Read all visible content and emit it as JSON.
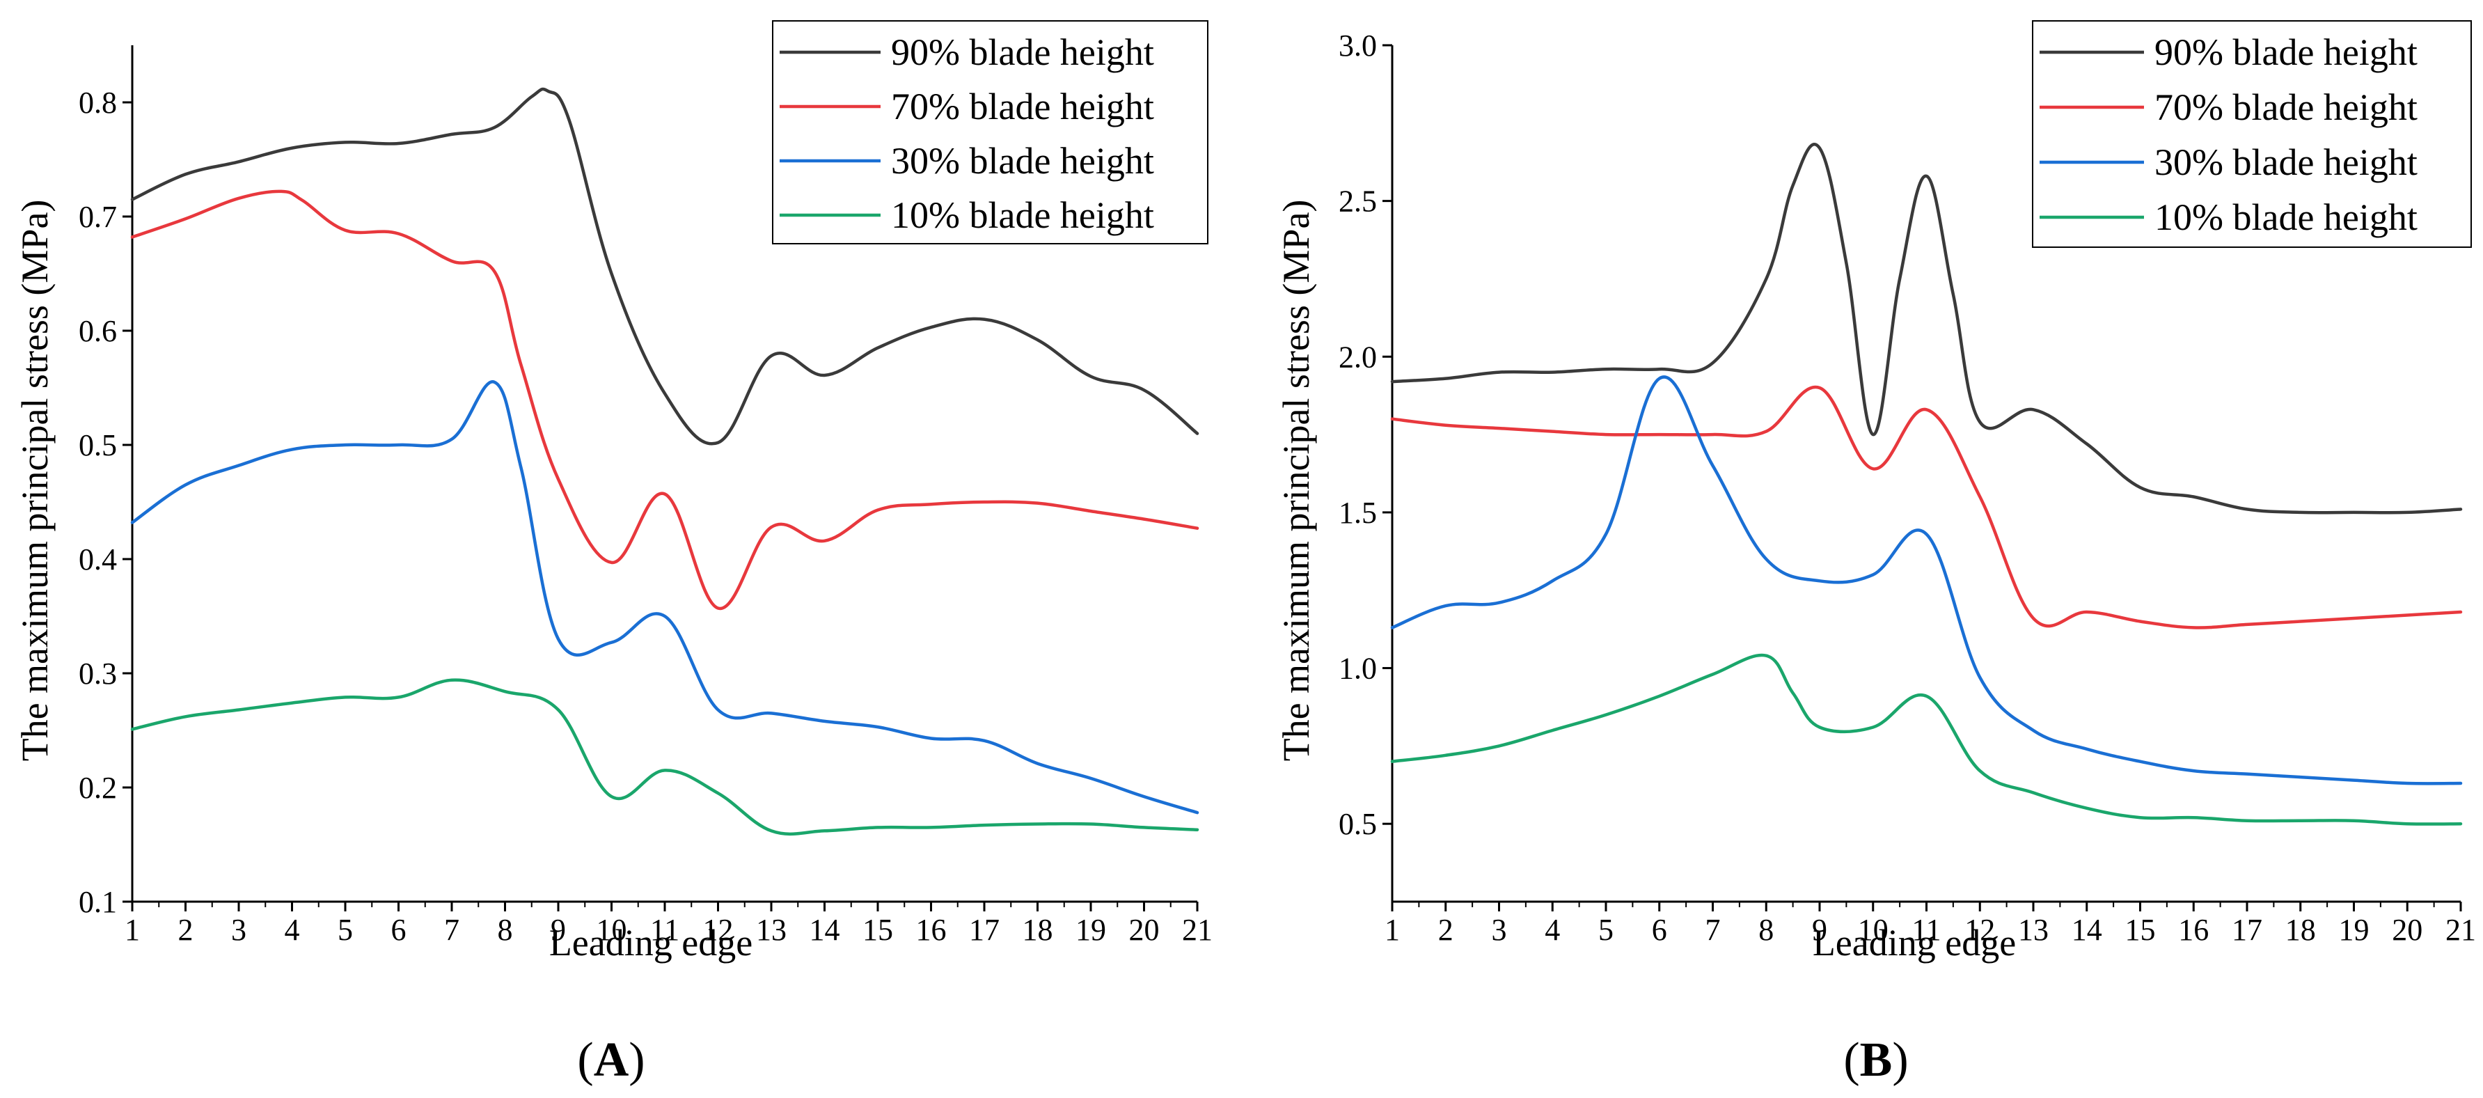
{
  "chart_data": [
    {
      "type": "line",
      "panel_label": "A",
      "xlabel": "Leading edge",
      "ylabel": "The maximum principal stress (MPa)",
      "xlim": [
        1,
        21
      ],
      "ylim": [
        0.1,
        0.85
      ],
      "x_ticks": [
        1,
        2,
        3,
        4,
        5,
        6,
        7,
        8,
        9,
        10,
        11,
        12,
        13,
        14,
        15,
        16,
        17,
        18,
        19,
        20,
        21
      ],
      "y_ticks": [
        "0.1",
        "0.2",
        "0.3",
        "0.4",
        "0.5",
        "0.6",
        "0.7",
        "0.8"
      ],
      "legend_position": "top-right",
      "series": [
        {
          "name": "90% blade height",
          "color": "#3a3a3a",
          "points": [
            [
              1,
              0.715
            ],
            [
              2,
              0.737
            ],
            [
              3,
              0.748
            ],
            [
              4,
              0.76
            ],
            [
              5,
              0.765
            ],
            [
              6,
              0.764
            ],
            [
              7,
              0.772
            ],
            [
              7.8,
              0.778
            ],
            [
              8.5,
              0.805
            ],
            [
              8.8,
              0.81
            ],
            [
              9.2,
              0.785
            ],
            [
              10,
              0.65
            ],
            [
              11,
              0.545
            ],
            [
              12,
              0.502
            ],
            [
              13,
              0.578
            ],
            [
              14,
              0.561
            ],
            [
              15,
              0.585
            ],
            [
              16,
              0.603
            ],
            [
              17,
              0.61
            ],
            [
              18,
              0.592
            ],
            [
              19,
              0.56
            ],
            [
              20,
              0.548
            ],
            [
              21,
              0.51
            ]
          ]
        },
        {
          "name": "70% blade height",
          "color": "#e8383d",
          "points": [
            [
              1,
              0.682
            ],
            [
              2,
              0.698
            ],
            [
              3,
              0.716
            ],
            [
              3.8,
              0.722
            ],
            [
              4.2,
              0.714
            ],
            [
              5,
              0.688
            ],
            [
              6,
              0.685
            ],
            [
              7,
              0.661
            ],
            [
              7.8,
              0.652
            ],
            [
              8.3,
              0.57
            ],
            [
              9,
              0.47
            ],
            [
              10,
              0.397
            ],
            [
              11,
              0.457
            ],
            [
              12,
              0.357
            ],
            [
              13,
              0.428
            ],
            [
              14,
              0.416
            ],
            [
              15,
              0.443
            ],
            [
              16,
              0.448
            ],
            [
              17,
              0.45
            ],
            [
              18,
              0.449
            ],
            [
              19,
              0.442
            ],
            [
              20,
              0.435
            ],
            [
              21,
              0.427
            ]
          ]
        },
        {
          "name": "30% blade height",
          "color": "#1a6fd4",
          "points": [
            [
              1,
              0.432
            ],
            [
              2,
              0.465
            ],
            [
              3,
              0.482
            ],
            [
              4,
              0.496
            ],
            [
              5,
              0.5
            ],
            [
              6,
              0.5
            ],
            [
              7,
              0.505
            ],
            [
              7.8,
              0.555
            ],
            [
              8.3,
              0.48
            ],
            [
              9,
              0.33
            ],
            [
              10,
              0.327
            ],
            [
              11,
              0.35
            ],
            [
              12,
              0.268
            ],
            [
              13,
              0.265
            ],
            [
              14,
              0.258
            ],
            [
              15,
              0.253
            ],
            [
              16,
              0.243
            ],
            [
              17,
              0.241
            ],
            [
              18,
              0.221
            ],
            [
              19,
              0.208
            ],
            [
              20,
              0.192
            ],
            [
              21,
              0.178
            ]
          ]
        },
        {
          "name": "10% blade height",
          "color": "#1aa66b",
          "points": [
            [
              1,
              0.251
            ],
            [
              2,
              0.262
            ],
            [
              3,
              0.268
            ],
            [
              4,
              0.274
            ],
            [
              5,
              0.279
            ],
            [
              6,
              0.279
            ],
            [
              7,
              0.294
            ],
            [
              8,
              0.284
            ],
            [
              9,
              0.268
            ],
            [
              10,
              0.192
            ],
            [
              11,
              0.215
            ],
            [
              12,
              0.195
            ],
            [
              13,
              0.162
            ],
            [
              14,
              0.162
            ],
            [
              15,
              0.165
            ],
            [
              16,
              0.165
            ],
            [
              17,
              0.167
            ],
            [
              18,
              0.168
            ],
            [
              19,
              0.168
            ],
            [
              20,
              0.165
            ],
            [
              21,
              0.163
            ]
          ]
        }
      ]
    },
    {
      "type": "line",
      "panel_label": "B",
      "xlabel": "Leading edge",
      "ylabel": "The maximum principal stress (MPa)",
      "xlim": [
        1,
        21
      ],
      "ylim": [
        0.25,
        3.0
      ],
      "x_ticks": [
        1,
        2,
        3,
        4,
        5,
        6,
        7,
        8,
        9,
        10,
        11,
        12,
        13,
        14,
        15,
        16,
        17,
        18,
        19,
        20,
        21
      ],
      "y_ticks": [
        "0.5",
        "1.0",
        "1.5",
        "2.0",
        "2.5",
        "3.0"
      ],
      "legend_position": "top-right",
      "series": [
        {
          "name": "90% blade height",
          "color": "#3a3a3a",
          "points": [
            [
              1,
              1.92
            ],
            [
              2,
              1.93
            ],
            [
              3,
              1.95
            ],
            [
              4,
              1.95
            ],
            [
              5,
              1.96
            ],
            [
              6,
              1.96
            ],
            [
              7,
              1.98
            ],
            [
              8,
              2.25
            ],
            [
              8.5,
              2.55
            ],
            [
              9,
              2.67
            ],
            [
              9.5,
              2.3
            ],
            [
              10,
              1.75
            ],
            [
              10.5,
              2.25
            ],
            [
              11,
              2.58
            ],
            [
              11.5,
              2.2
            ],
            [
              12,
              1.79
            ],
            [
              13,
              1.83
            ],
            [
              14,
              1.72
            ],
            [
              15,
              1.58
            ],
            [
              16,
              1.55
            ],
            [
              17,
              1.51
            ],
            [
              18,
              1.5
            ],
            [
              19,
              1.5
            ],
            [
              20,
              1.5
            ],
            [
              21,
              1.51
            ]
          ]
        },
        {
          "name": "70% blade height",
          "color": "#e8383d",
          "points": [
            [
              1,
              1.8
            ],
            [
              2,
              1.78
            ],
            [
              3,
              1.77
            ],
            [
              4,
              1.76
            ],
            [
              5,
              1.75
            ],
            [
              6,
              1.75
            ],
            [
              7,
              1.75
            ],
            [
              8,
              1.76
            ],
            [
              9,
              1.9
            ],
            [
              10,
              1.64
            ],
            [
              11,
              1.83
            ],
            [
              12,
              1.55
            ],
            [
              13,
              1.16
            ],
            [
              14,
              1.18
            ],
            [
              15,
              1.15
            ],
            [
              16,
              1.13
            ],
            [
              17,
              1.14
            ],
            [
              18,
              1.15
            ],
            [
              19,
              1.16
            ],
            [
              20,
              1.17
            ],
            [
              21,
              1.18
            ]
          ]
        },
        {
          "name": "30% blade height",
          "color": "#1a6fd4",
          "points": [
            [
              1,
              1.13
            ],
            [
              2,
              1.2
            ],
            [
              3,
              1.21
            ],
            [
              4,
              1.28
            ],
            [
              5,
              1.43
            ],
            [
              6,
              1.93
            ],
            [
              7,
              1.65
            ],
            [
              8,
              1.35
            ],
            [
              9,
              1.28
            ],
            [
              10,
              1.3
            ],
            [
              11,
              1.43
            ],
            [
              12,
              0.97
            ],
            [
              13,
              0.8
            ],
            [
              14,
              0.74
            ],
            [
              15,
              0.7
            ],
            [
              16,
              0.67
            ],
            [
              17,
              0.66
            ],
            [
              18,
              0.65
            ],
            [
              19,
              0.64
            ],
            [
              20,
              0.63
            ],
            [
              21,
              0.63
            ]
          ]
        },
        {
          "name": "10% blade height",
          "color": "#1aa66b",
          "points": [
            [
              1,
              0.7
            ],
            [
              2,
              0.72
            ],
            [
              3,
              0.75
            ],
            [
              4,
              0.8
            ],
            [
              5,
              0.85
            ],
            [
              6,
              0.91
            ],
            [
              7,
              0.98
            ],
            [
              8,
              1.04
            ],
            [
              8.5,
              0.92
            ],
            [
              9,
              0.81
            ],
            [
              10,
              0.81
            ],
            [
              11,
              0.91
            ],
            [
              12,
              0.67
            ],
            [
              13,
              0.6
            ],
            [
              14,
              0.55
            ],
            [
              15,
              0.52
            ],
            [
              16,
              0.52
            ],
            [
              17,
              0.51
            ],
            [
              18,
              0.51
            ],
            [
              19,
              0.51
            ],
            [
              20,
              0.5
            ],
            [
              21,
              0.5
            ]
          ]
        }
      ]
    }
  ]
}
